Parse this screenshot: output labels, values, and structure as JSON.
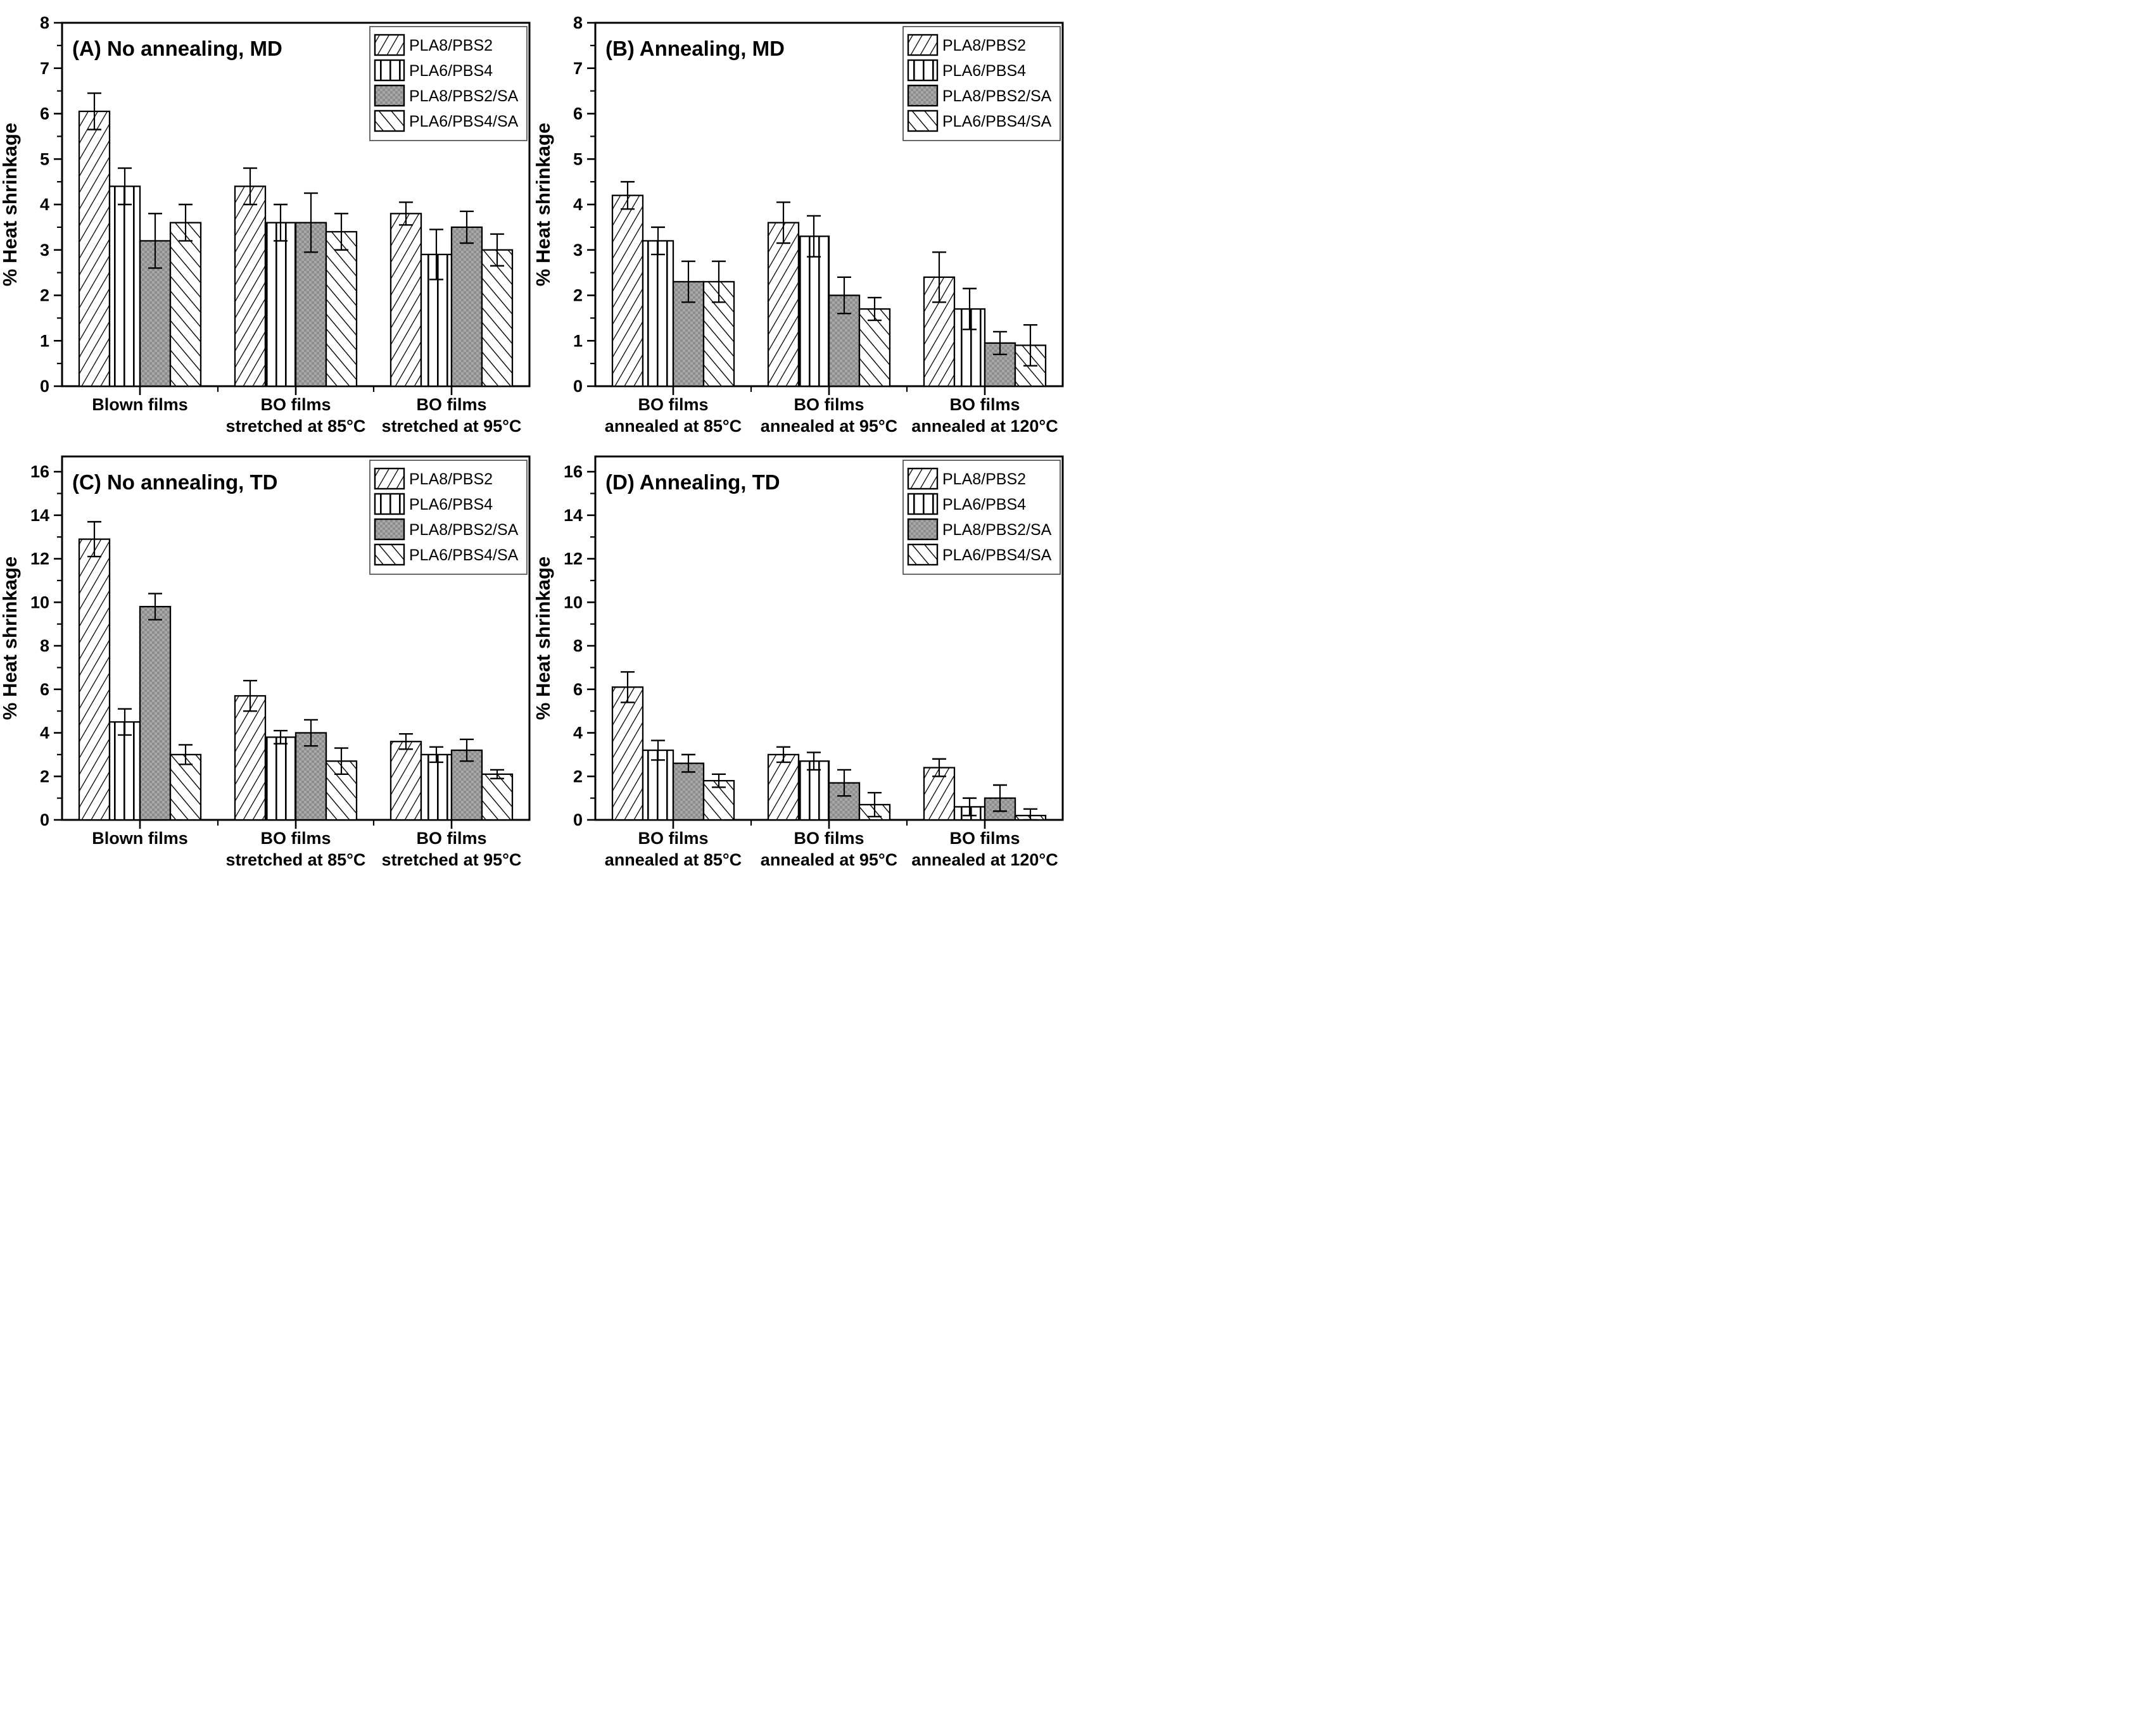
{
  "figure": {
    "background": "#ffffff",
    "axis_color": "#000000",
    "bar_outline_color": "#000000",
    "gray_fill": "#9b9b9b",
    "gray_fill_dark": "#8d8d8d",
    "gray_fill_light": "#a7a7a7",
    "ylabel": "% Heat shrinkage"
  },
  "chart_data": [
    {
      "id": "A",
      "type": "bar",
      "title": "(A) No annealing, MD",
      "ylabel": "% Heat shrinkage",
      "ylim": [
        0,
        8
      ],
      "ytick_step": 1,
      "yminor_step": 0.5,
      "grid": false,
      "legend_position": "top-right",
      "categories": [
        [
          "Blown films",
          ""
        ],
        [
          "BO films",
          "stretched at 85°C"
        ],
        [
          "BO films",
          "stretched at 95°C"
        ]
      ],
      "series": [
        {
          "name": "PLA8/PBS2",
          "hatch": "diag-up",
          "values": [
            6.05,
            4.4,
            3.8
          ],
          "errors": [
            0.4,
            0.4,
            0.25
          ]
        },
        {
          "name": "PLA6/PBS4",
          "hatch": "vertical",
          "values": [
            4.4,
            3.6,
            2.9
          ],
          "errors": [
            0.4,
            0.4,
            0.55
          ]
        },
        {
          "name": "PLA8/PBS2/SA",
          "hatch": "gray",
          "values": [
            3.2,
            3.6,
            3.5
          ],
          "errors": [
            0.6,
            0.65,
            0.35
          ]
        },
        {
          "name": "PLA6/PBS4/SA",
          "hatch": "diag-down",
          "values": [
            3.6,
            3.4,
            3.0
          ],
          "errors": [
            0.4,
            0.4,
            0.35
          ]
        }
      ]
    },
    {
      "id": "B",
      "type": "bar",
      "title": "(B) Annealing, MD",
      "ylabel": "% Heat shrinkage",
      "ylim": [
        0,
        8
      ],
      "ytick_step": 1,
      "yminor_step": 0.5,
      "grid": false,
      "legend_position": "top-right",
      "categories": [
        [
          "BO films",
          "annealed at 85°C"
        ],
        [
          "BO films",
          "annealed at 95°C"
        ],
        [
          "BO films",
          "annealed at 120°C"
        ]
      ],
      "series": [
        {
          "name": "PLA8/PBS2",
          "hatch": "diag-up",
          "values": [
            4.2,
            3.6,
            2.4
          ],
          "errors": [
            0.3,
            0.45,
            0.55
          ]
        },
        {
          "name": "PLA6/PBS4",
          "hatch": "vertical",
          "values": [
            3.2,
            3.3,
            1.7
          ],
          "errors": [
            0.3,
            0.45,
            0.45
          ]
        },
        {
          "name": "PLA8/PBS2/SA",
          "hatch": "gray",
          "values": [
            2.3,
            2.0,
            0.95
          ],
          "errors": [
            0.45,
            0.4,
            0.25
          ]
        },
        {
          "name": "PLA6/PBS4/SA",
          "hatch": "diag-down",
          "values": [
            2.3,
            1.7,
            0.9
          ],
          "errors": [
            0.45,
            0.25,
            0.45
          ]
        }
      ]
    },
    {
      "id": "C",
      "type": "bar",
      "title": "(C) No annealing, TD",
      "ylabel": "% Heat shrinkage",
      "ylim": [
        0,
        16.7
      ],
      "ytick_step": 2,
      "yminor_step": 1,
      "ytick_label_max": 16,
      "grid": false,
      "legend_position": "top-right",
      "categories": [
        [
          "Blown films",
          ""
        ],
        [
          "BO films",
          "stretched at 85°C"
        ],
        [
          "BO films",
          "stretched at 95°C"
        ]
      ],
      "series": [
        {
          "name": "PLA8/PBS2",
          "hatch": "diag-up",
          "values": [
            12.9,
            5.7,
            3.6
          ],
          "errors": [
            0.8,
            0.7,
            0.35
          ]
        },
        {
          "name": "PLA6/PBS4",
          "hatch": "vertical",
          "values": [
            4.5,
            3.8,
            3.0
          ],
          "errors": [
            0.6,
            0.3,
            0.35
          ]
        },
        {
          "name": "PLA8/PBS2/SA",
          "hatch": "gray",
          "values": [
            9.8,
            4.0,
            3.2
          ],
          "errors": [
            0.6,
            0.6,
            0.5
          ]
        },
        {
          "name": "PLA6/PBS4/SA",
          "hatch": "diag-down",
          "values": [
            3.0,
            2.7,
            2.1
          ],
          "errors": [
            0.45,
            0.6,
            0.2
          ]
        }
      ]
    },
    {
      "id": "D",
      "type": "bar",
      "title": "(D) Annealing, TD",
      "ylabel": "% Heat shrinkage",
      "ylim": [
        0,
        16.7
      ],
      "ytick_step": 2,
      "yminor_step": 1,
      "ytick_label_max": 16,
      "grid": false,
      "legend_position": "top-right",
      "categories": [
        [
          "BO films",
          "annealed at 85°C"
        ],
        [
          "BO films",
          "annealed at 95°C"
        ],
        [
          "BO films",
          "annealed at 120°C"
        ]
      ],
      "series": [
        {
          "name": "PLA8/PBS2",
          "hatch": "diag-up",
          "values": [
            6.1,
            3.0,
            2.4
          ],
          "errors": [
            0.7,
            0.35,
            0.4
          ]
        },
        {
          "name": "PLA6/PBS4",
          "hatch": "vertical",
          "values": [
            3.2,
            2.7,
            0.6
          ],
          "errors": [
            0.45,
            0.4,
            0.4
          ]
        },
        {
          "name": "PLA8/PBS2/SA",
          "hatch": "gray",
          "values": [
            2.6,
            1.7,
            1.0
          ],
          "errors": [
            0.4,
            0.6,
            0.6
          ]
        },
        {
          "name": "PLA6/PBS4/SA",
          "hatch": "diag-down",
          "values": [
            1.8,
            0.7,
            0.2
          ],
          "errors": [
            0.3,
            0.55,
            0.3
          ]
        }
      ]
    }
  ]
}
